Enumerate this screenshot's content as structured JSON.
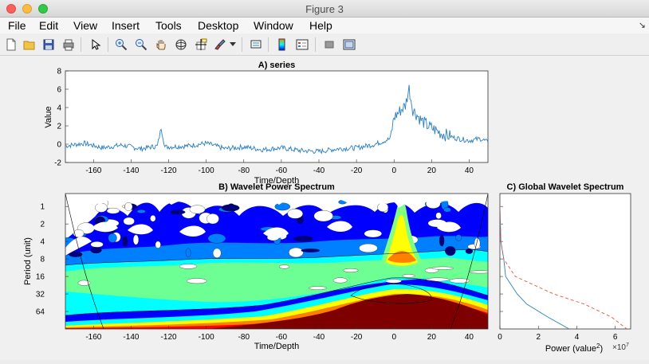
{
  "window": {
    "title": "Figure 3"
  },
  "menu": {
    "items": [
      "File",
      "Edit",
      "View",
      "Insert",
      "Tools",
      "Desktop",
      "Window",
      "Help"
    ]
  },
  "toolbar": {
    "icons": [
      "new-figure-icon",
      "open-file-icon",
      "save-icon",
      "print-icon",
      "pointer-icon",
      "zoom-in-icon",
      "zoom-out-icon",
      "pan-icon",
      "rotate-3d-icon",
      "data-cursor-icon",
      "brush-icon",
      "brush-dropdown-icon",
      "link-plot-icon",
      "colorbar-icon",
      "legend-icon",
      "hide-plot-tools-icon",
      "show-plot-tools-icon"
    ]
  },
  "colors": {
    "series_line": "#2a7fc1",
    "global_solid": "#2a7fc1",
    "global_dashed": "#e0573a",
    "jet": [
      "#00007f",
      "#0000ff",
      "#0080ff",
      "#00ffff",
      "#80ff80",
      "#ffff00",
      "#ff8000",
      "#ff0000",
      "#7f0000"
    ]
  },
  "chart_data": [
    {
      "type": "line",
      "title": "A) series",
      "xlabel": "Time/Depth",
      "ylabel": "Value",
      "xlim": [
        -175,
        50
      ],
      "ylim": [
        -2,
        8
      ],
      "xticks": [
        -160,
        -140,
        -120,
        -100,
        -80,
        -60,
        -40,
        -20,
        0,
        20,
        40
      ],
      "yticks": [
        -2,
        0,
        2,
        4,
        6,
        8
      ],
      "description_points": [
        [
          -175,
          -0.2
        ],
        [
          -165,
          0.1
        ],
        [
          -155,
          -0.4
        ],
        [
          -145,
          -0.1
        ],
        [
          -135,
          -0.5
        ],
        [
          -126,
          -0.2
        ],
        [
          -124,
          1.8
        ],
        [
          -122,
          -0.3
        ],
        [
          -110,
          -0.2
        ],
        [
          -100,
          0.1
        ],
        [
          -90,
          -0.5
        ],
        [
          -80,
          -0.3
        ],
        [
          -70,
          -0.6
        ],
        [
          -60,
          -0.4
        ],
        [
          -50,
          -0.7
        ],
        [
          -40,
          -0.8
        ],
        [
          -30,
          -0.5
        ],
        [
          -20,
          -0.4
        ],
        [
          -10,
          0.0
        ],
        [
          -2,
          0.6
        ],
        [
          0,
          2.9
        ],
        [
          3,
          3.6
        ],
        [
          6,
          4.2
        ],
        [
          8,
          6.1
        ],
        [
          10,
          3.8
        ],
        [
          14,
          2.7
        ],
        [
          18,
          2.0
        ],
        [
          25,
          1.2
        ],
        [
          32,
          0.7
        ],
        [
          40,
          0.4
        ],
        [
          46,
          0.6
        ],
        [
          50,
          0.2
        ]
      ]
    },
    {
      "type": "heatmap",
      "title": "B) Wavelet Power Spectrum",
      "xlabel": "Time/Depth",
      "ylabel": "Period (unit)",
      "xlim": [
        -175,
        50
      ],
      "xticks": [
        -160,
        -140,
        -120,
        -100,
        -80,
        -60,
        -40,
        -20,
        0,
        20,
        40
      ],
      "yticks": [
        1,
        2,
        4,
        8,
        16,
        32,
        64
      ],
      "yscale": "log2",
      "yinverted": true
    },
    {
      "type": "line",
      "title": "C) Global Wavelet Spectrum",
      "xlabel_prefix": "Power (value",
      "xlabel_sup": "2",
      "xlabel_suffix": ")",
      "xscale_label": "×10",
      "xscale_exp": "7",
      "xlim": [
        0,
        6.8
      ],
      "xticks": [
        0,
        2,
        4,
        6
      ],
      "series": [
        {
          "style": "solid",
          "points": [
            [
              0.0,
              1
            ],
            [
              0.05,
              4
            ],
            [
              0.2,
              8
            ],
            [
              0.3,
              16
            ],
            [
              0.9,
              32
            ],
            [
              1.4,
              48
            ],
            [
              2.5,
              80
            ],
            [
              3.6,
              128
            ]
          ]
        },
        {
          "style": "dashed",
          "points": [
            [
              0.0,
              1
            ],
            [
              0.05,
              4
            ],
            [
              0.2,
              8
            ],
            [
              0.8,
              16
            ],
            [
              2.8,
              32
            ],
            [
              4.4,
              48
            ],
            [
              5.8,
              80
            ],
            [
              6.6,
              128
            ]
          ]
        }
      ]
    }
  ]
}
